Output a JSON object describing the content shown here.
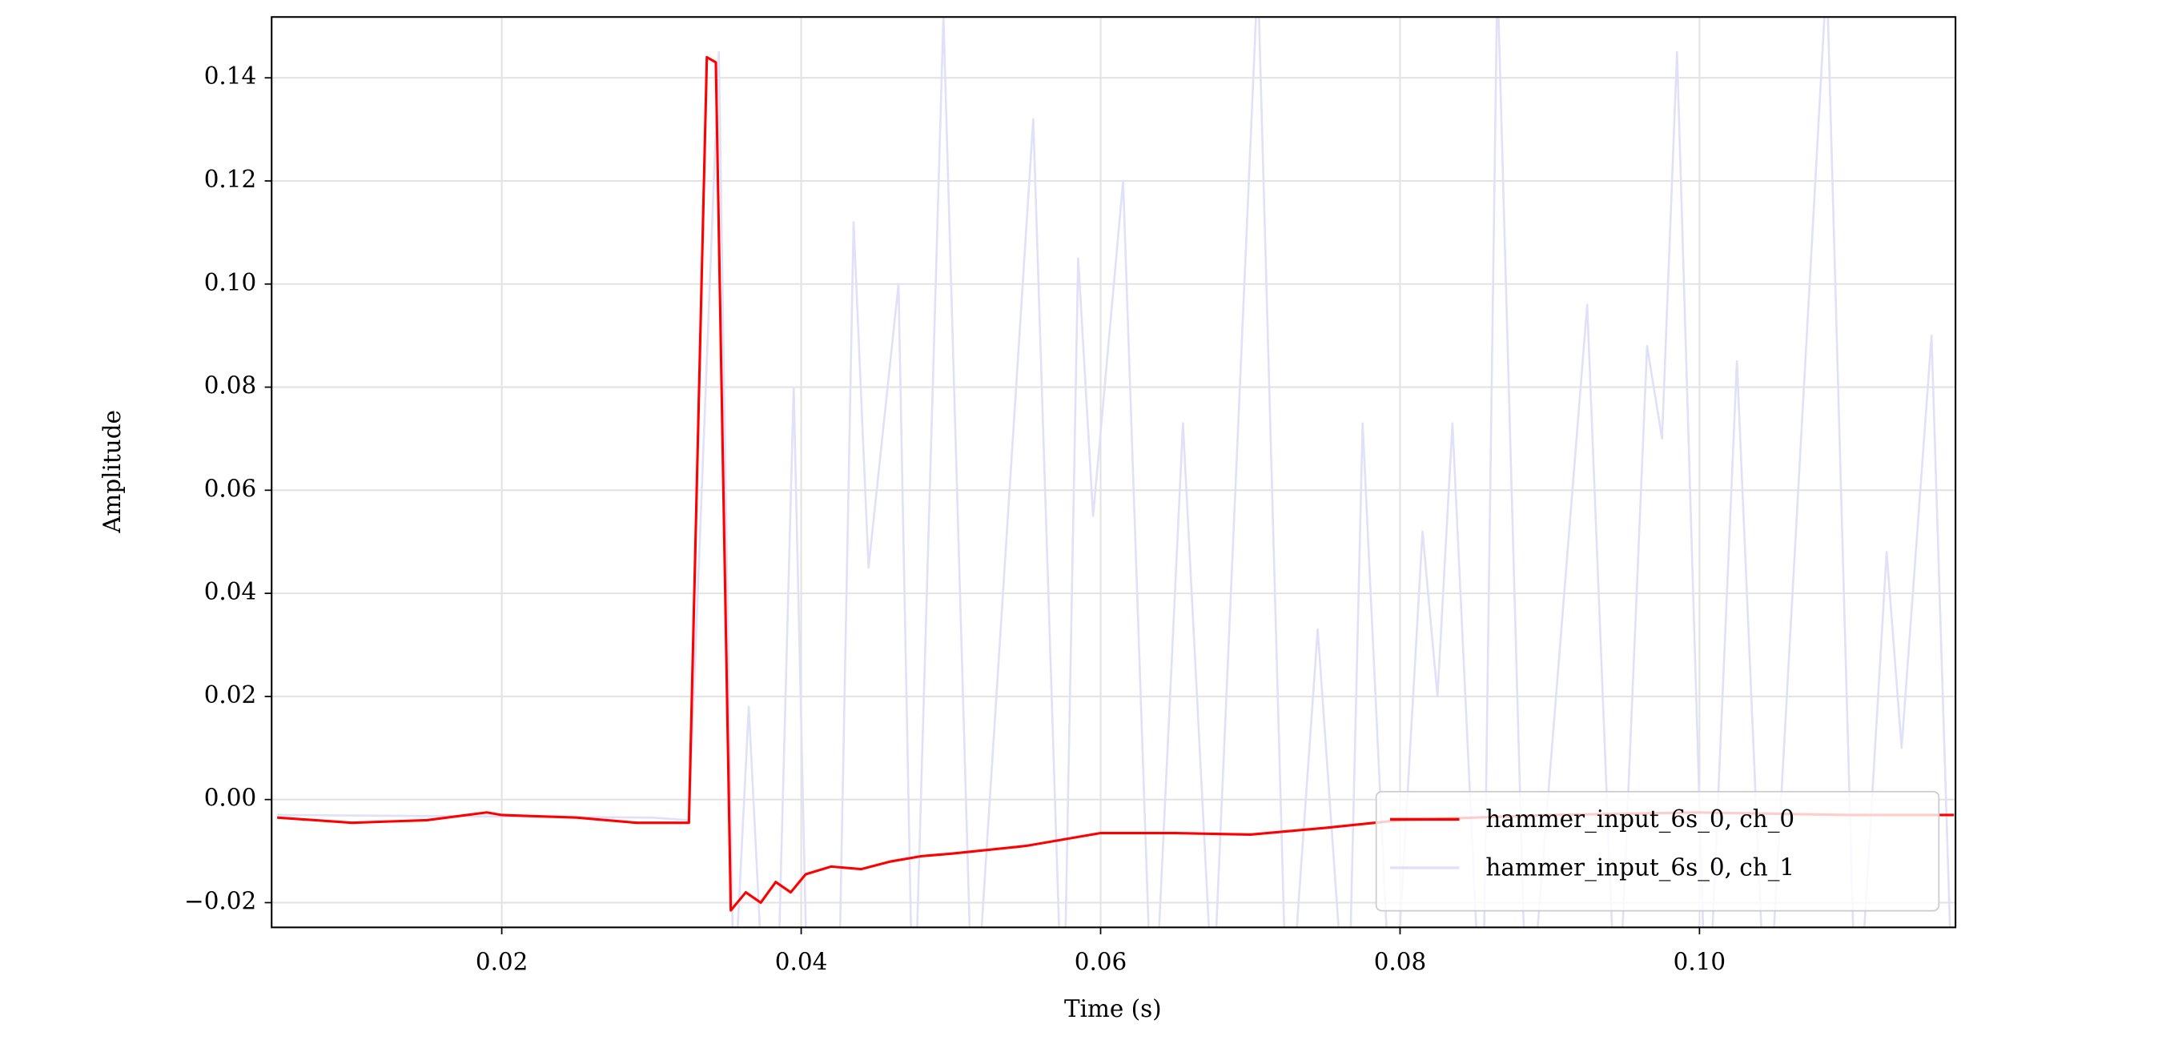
{
  "chart_data": {
    "type": "line",
    "xlabel": "Time (s)",
    "ylabel": "Amplitude",
    "xlim": [
      0.00463,
      0.1171
    ],
    "ylim": [
      -0.0248,
      0.1518
    ],
    "xticks": [
      0.02,
      0.04,
      0.06,
      0.08,
      {
        "value": 0.1,
        "label": "0.10"
      }
    ],
    "yticks": [
      {
        "value": -0.02,
        "label": "−0.02"
      },
      {
        "value": 0,
        "label": "0.00"
      },
      0.02,
      0.04,
      0.06,
      0.08,
      {
        "value": 0.1,
        "label": "0.10"
      },
      0.12,
      0.14
    ],
    "grid": true,
    "legend": "lower right",
    "series": [
      {
        "name": "hammer_input_6s_0, ch_0",
        "color": "#ff0000",
        "x": [
          0.005,
          0.01,
          0.015,
          0.019,
          0.02,
          0.025,
          0.029,
          0.0325,
          0.0337,
          0.0343,
          0.0353,
          0.0363,
          0.0373,
          0.0383,
          0.0393,
          0.0403,
          0.042,
          0.044,
          0.046,
          0.048,
          0.05,
          0.055,
          0.06,
          0.065,
          0.07,
          0.075,
          0.08,
          0.09,
          0.1,
          0.11,
          0.117
        ],
        "values": [
          -0.0035,
          -0.0045,
          -0.004,
          -0.0025,
          -0.003,
          -0.0035,
          -0.0045,
          -0.0045,
          0.144,
          0.143,
          -0.0215,
          -0.018,
          -0.02,
          -0.016,
          -0.018,
          -0.0145,
          -0.013,
          -0.0135,
          -0.012,
          -0.011,
          -0.0105,
          -0.009,
          -0.0065,
          -0.0065,
          -0.0068,
          -0.0055,
          -0.004,
          -0.003,
          -0.0025,
          -0.003,
          -0.003
        ]
      },
      {
        "name": "hammer_input_6s_0, ch_1",
        "color": "#e0e0f8",
        "x": [
          0.005,
          0.03,
          0.0325,
          0.0345,
          0.0355,
          0.0365,
          0.0375,
          0.0385,
          0.0395,
          0.0405,
          0.0425,
          0.0435,
          0.0445,
          0.0465,
          0.0475,
          0.0495,
          0.0515,
          0.0555,
          0.0575,
          0.0585,
          0.0595,
          0.0615,
          0.0635,
          0.0655,
          0.0675,
          0.0705,
          0.0725,
          0.0745,
          0.0765,
          0.0775,
          0.0795,
          0.0815,
          0.0825,
          0.0835,
          0.0855,
          0.0865,
          0.0885,
          0.0925,
          0.0945,
          0.0965,
          0.0975,
          0.0985,
          0.1005,
          0.1025,
          0.1045,
          0.1085,
          0.1105,
          0.1125,
          0.1135,
          0.1155,
          0.117
        ],
        "values": [
          -0.003,
          -0.0035,
          -0.004,
          0.145,
          -0.04,
          0.018,
          -0.04,
          -0.03,
          0.08,
          -0.05,
          -0.04,
          0.112,
          0.045,
          0.1,
          -0.05,
          0.152,
          -0.05,
          0.132,
          -0.05,
          0.105,
          0.055,
          0.12,
          -0.05,
          0.073,
          -0.04,
          0.16,
          -0.05,
          0.033,
          -0.05,
          0.073,
          -0.05,
          0.052,
          0.02,
          0.073,
          -0.05,
          0.16,
          -0.05,
          0.096,
          -0.05,
          0.088,
          0.07,
          0.145,
          -0.05,
          0.085,
          -0.05,
          0.16,
          -0.05,
          0.048,
          0.01,
          0.09,
          -0.05
        ]
      }
    ]
  }
}
